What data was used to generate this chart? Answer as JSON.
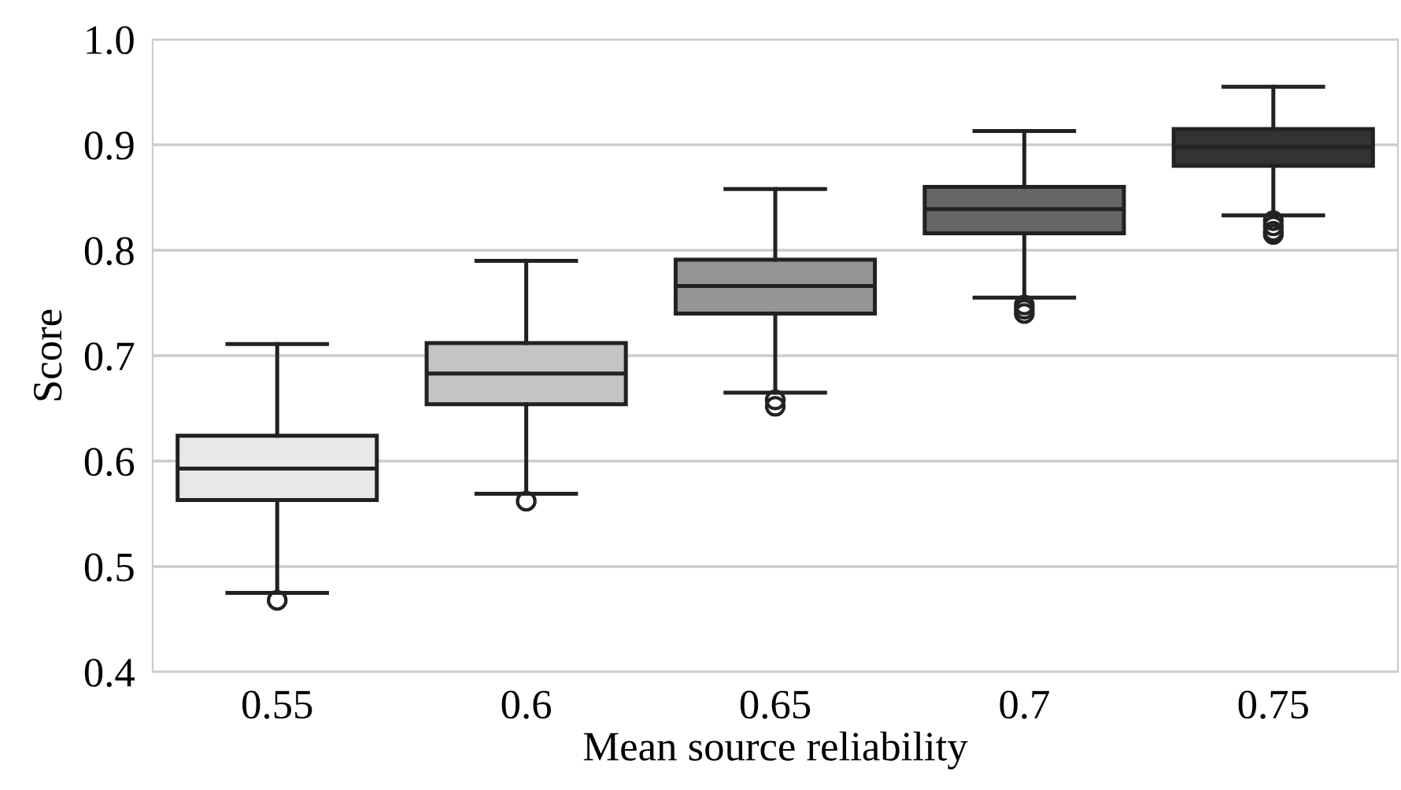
{
  "chart_data": {
    "type": "box",
    "xlabel": "Mean source reliability",
    "ylabel": "Score",
    "categories": [
      "0.55",
      "0.6",
      "0.65",
      "0.7",
      "0.75"
    ],
    "colors": [
      "#e8e8e8",
      "#c4c4c4",
      "#959595",
      "#666666",
      "#333333"
    ],
    "boxes": [
      {
        "low": 0.475,
        "q1": 0.563,
        "median": 0.593,
        "q3": 0.624,
        "high": 0.711,
        "outliers": [
          0.468
        ]
      },
      {
        "low": 0.569,
        "q1": 0.654,
        "median": 0.683,
        "q3": 0.712,
        "high": 0.79,
        "outliers": [
          0.562
        ]
      },
      {
        "low": 0.665,
        "q1": 0.74,
        "median": 0.766,
        "q3": 0.791,
        "high": 0.858,
        "outliers": [
          0.658,
          0.652
        ]
      },
      {
        "low": 0.755,
        "q1": 0.816,
        "median": 0.839,
        "q3": 0.86,
        "high": 0.913,
        "outliers": [
          0.748,
          0.744,
          0.74
        ]
      },
      {
        "low": 0.833,
        "q1": 0.88,
        "median": 0.898,
        "q3": 0.915,
        "high": 0.955,
        "outliers": [
          0.828,
          0.823,
          0.818,
          0.815
        ]
      }
    ],
    "ylim": [
      0.4,
      1.0
    ],
    "yticks": [
      0.4,
      0.5,
      0.6,
      0.7,
      0.8,
      0.9,
      {
        "value": 1,
        "label": "1.0"
      }
    ],
    "grid": "y"
  }
}
